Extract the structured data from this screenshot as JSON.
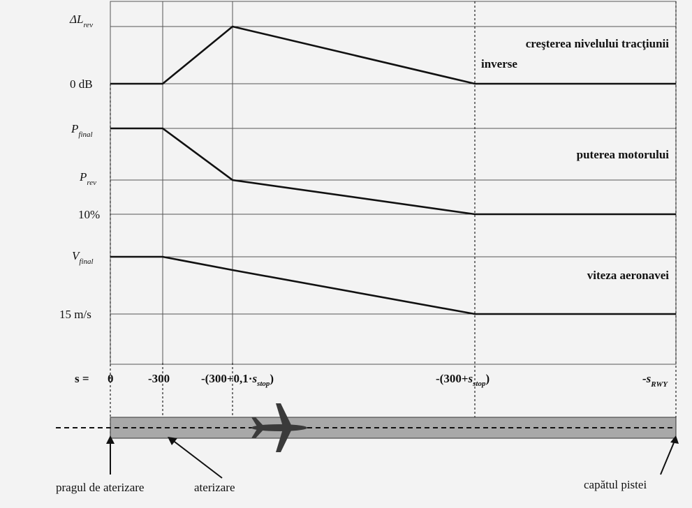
{
  "panels": {
    "thrust": {
      "top_label": "ΔL",
      "top_label_sub": "rev",
      "bottom_label": "0 dB",
      "description_line1": "creşterea nivelului tracţiunii",
      "description_line2": "inverse"
    },
    "power": {
      "top_label": "P",
      "top_label_sub": "final",
      "mid_label": "P",
      "mid_label_sub": "rev",
      "bottom_label": "10%",
      "description": "puterea motorului"
    },
    "speed": {
      "top_label": "V",
      "top_label_sub": "final",
      "bottom_label": "15 m/s",
      "description": "viteza aeronavei"
    }
  },
  "axis": {
    "s_label": "s =",
    "tick_0": "0",
    "tick_300": "-300",
    "tick_a_pre": "-(300+0,1·",
    "tick_a_var": "s",
    "tick_a_sub": "stop",
    "tick_a_post": ")",
    "tick_b_pre": "-(300+",
    "tick_b_var": "s",
    "tick_b_sub": "stop",
    "tick_b_post": ")",
    "tick_end_var": "-s",
    "tick_end_sub": "RWY"
  },
  "runway": {
    "threshold_label": "pragul de aterizare",
    "touchdown_label": "aterizare",
    "end_label": "capătul pistei"
  },
  "colors": {
    "line": "#111111",
    "grid": "#555555",
    "runway": "#a8a8a8",
    "background": "#f3f3f3"
  }
}
